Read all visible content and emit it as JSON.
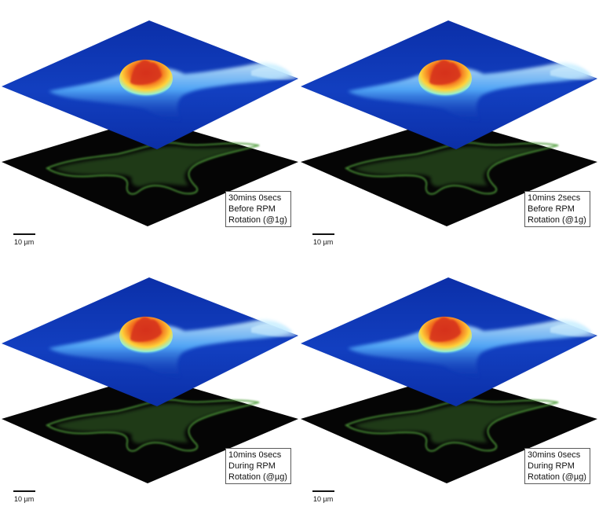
{
  "figure": {
    "panels": [
      {
        "time": "30mins 0secs",
        "phase": "Before RPM",
        "condition": "Rotation (@1g)",
        "scale_bar": "10 µm"
      },
      {
        "time": "10mins 2secs",
        "phase": "Before RPM",
        "condition": "Rotation (@1g)",
        "scale_bar": "10 µm"
      },
      {
        "time": "10mins 0secs",
        "phase": "During RPM",
        "condition": "Rotation (@µg)",
        "scale_bar": "10 µm"
      },
      {
        "time": "30mins 0secs",
        "phase": "During RPM",
        "condition": "Rotation (@µg)",
        "scale_bar": "10 µm"
      }
    ],
    "colors": {
      "surface_low": "#0b2fa8",
      "surface_mid": "#2f8fff",
      "surface_ridge": "#d9f6ff",
      "peak_warm": "#ffd23a",
      "peak_hot": "#d6301a",
      "micrograph_bg": "#050505",
      "fluorescence": "#4f9d3a"
    }
  }
}
